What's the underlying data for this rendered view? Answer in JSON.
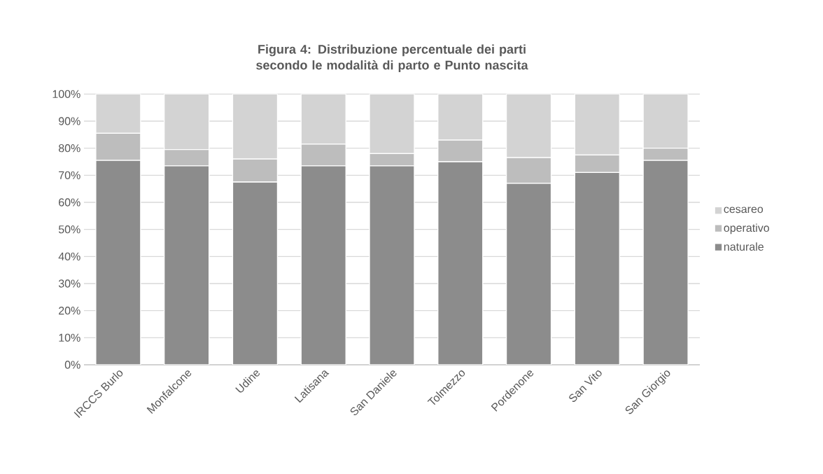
{
  "chart_data": {
    "type": "bar",
    "stacked": true,
    "title": "Figura 4: Distribuzione percentuale dei parti secondo le modalità di parto e  Punto nascita",
    "categories": [
      "IRCCS Burlo",
      "Monfalcone",
      "Udine",
      "Latisana",
      "San Daniele",
      "Tolmezzo",
      "Pordenone",
      "San Vito",
      "San Giorgio"
    ],
    "series": [
      {
        "name": "naturale",
        "color": "#8c8c8c",
        "values": [
          75.5,
          73.5,
          67.5,
          73.5,
          73.5,
          75,
          67,
          71,
          75.5
        ]
      },
      {
        "name": "operativo",
        "color": "#bdbdbd",
        "values": [
          10,
          6,
          8.5,
          8,
          4.5,
          8,
          9.5,
          6.5,
          4.5
        ]
      },
      {
        "name": "cesareo",
        "color": "#d3d3d3",
        "values": [
          14.5,
          20.5,
          24,
          18.5,
          22,
          17,
          23.5,
          22.5,
          20
        ]
      }
    ],
    "ylim": [
      0,
      100
    ],
    "yticks": [
      {
        "value": 0,
        "label": "0%"
      },
      {
        "value": 10,
        "label": "10%"
      },
      {
        "value": 20,
        "label": "20%"
      },
      {
        "value": 30,
        "label": "30%"
      },
      {
        "value": 40,
        "label": "40%"
      },
      {
        "value": 50,
        "label": "50%"
      },
      {
        "value": 60,
        "label": "60%"
      },
      {
        "value": 70,
        "label": "70%"
      },
      {
        "value": 80,
        "label": "80%"
      },
      {
        "value": 90,
        "label": "90%"
      },
      {
        "value": 100,
        "label": "100%"
      }
    ],
    "grid": "y",
    "legend": "right"
  }
}
